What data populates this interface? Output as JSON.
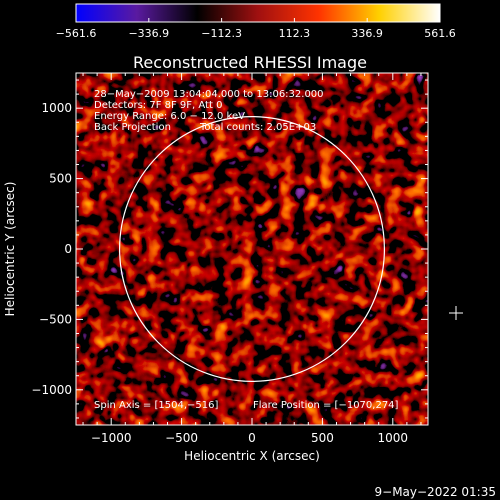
{
  "chart_data": {
    "type": "heatmap",
    "title": "Reconstructed RHESSI Image",
    "xlabel": "Heliocentric X (arcsec)",
    "ylabel": "Heliocentric Y (arcsec)",
    "xlim": [
      -1250,
      1250
    ],
    "ylim": [
      -1250,
      1250
    ],
    "x_ticks": [
      -1000,
      -500,
      0,
      500,
      1000
    ],
    "x_tick_labels": [
      "−1000",
      "−500",
      "0",
      "500",
      "1000"
    ],
    "y_ticks": [
      -1000,
      -500,
      0,
      500,
      1000
    ],
    "y_tick_labels": [
      "−1000",
      "−500",
      "0",
      "500",
      "1000"
    ],
    "colorbar": {
      "min": -561.6,
      "max": 561.6,
      "ticks": [
        -561.6,
        -336.9,
        -112.3,
        112.3,
        336.9,
        561.6
      ],
      "tick_labels": [
        "−561.6",
        "−336.9",
        "−112.3",
        "112.3",
        "336.9",
        "561.6"
      ],
      "colormap": [
        "#0000ff",
        "#5a1aa0",
        "#000000",
        "#a01010",
        "#ff3300",
        "#ffd000",
        "#ffffff"
      ]
    },
    "info_lines": [
      "28−May−2009 13:04:04.000 to 13:06:32.000",
      "Detectors: 7F 8F 9F, Att 0",
      "Energy Range: 6.0 − 12.0 keV",
      "Back Projection",
      "Total counts: 2.05E+03"
    ],
    "spin_axis_label": "Spin Axis = [1504,−516]",
    "flare_position_label": "Flare Position = [−1070,274]",
    "solar_limb": {
      "center": [
        0,
        0
      ],
      "radius_arcsec": 940,
      "color": "#ffffff"
    }
  },
  "footer": {
    "timestamp": "9−May−2022 01:35"
  }
}
